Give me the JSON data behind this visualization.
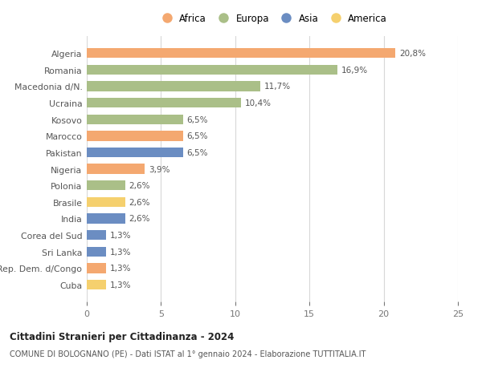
{
  "countries": [
    "Algeria",
    "Romania",
    "Macedonia d/N.",
    "Ucraina",
    "Kosovo",
    "Marocco",
    "Pakistan",
    "Nigeria",
    "Polonia",
    "Brasile",
    "India",
    "Corea del Sud",
    "Sri Lanka",
    "Rep. Dem. d/Congo",
    "Cuba"
  ],
  "values": [
    20.8,
    16.9,
    11.7,
    10.4,
    6.5,
    6.5,
    6.5,
    3.9,
    2.6,
    2.6,
    2.6,
    1.3,
    1.3,
    1.3,
    1.3
  ],
  "labels": [
    "20,8%",
    "16,9%",
    "11,7%",
    "10,4%",
    "6,5%",
    "6,5%",
    "6,5%",
    "3,9%",
    "2,6%",
    "2,6%",
    "2,6%",
    "1,3%",
    "1,3%",
    "1,3%",
    "1,3%"
  ],
  "continents": [
    "Africa",
    "Europa",
    "Europa",
    "Europa",
    "Europa",
    "Africa",
    "Asia",
    "Africa",
    "Europa",
    "America",
    "Asia",
    "Asia",
    "Asia",
    "Africa",
    "America"
  ],
  "colors": {
    "Africa": "#F4A870",
    "Europa": "#AABF88",
    "Asia": "#6B8DC2",
    "America": "#F5D06E"
  },
  "legend_order": [
    "Africa",
    "Europa",
    "Asia",
    "America"
  ],
  "title1": "Cittadini Stranieri per Cittadinanza - 2024",
  "title2": "COMUNE DI BOLOGNANO (PE) - Dati ISTAT al 1° gennaio 2024 - Elaborazione TUTTITALIA.IT",
  "xlim": [
    0,
    25
  ],
  "xticks": [
    0,
    5,
    10,
    15,
    20,
    25
  ],
  "background_color": "#ffffff",
  "grid_color": "#d8d8d8"
}
